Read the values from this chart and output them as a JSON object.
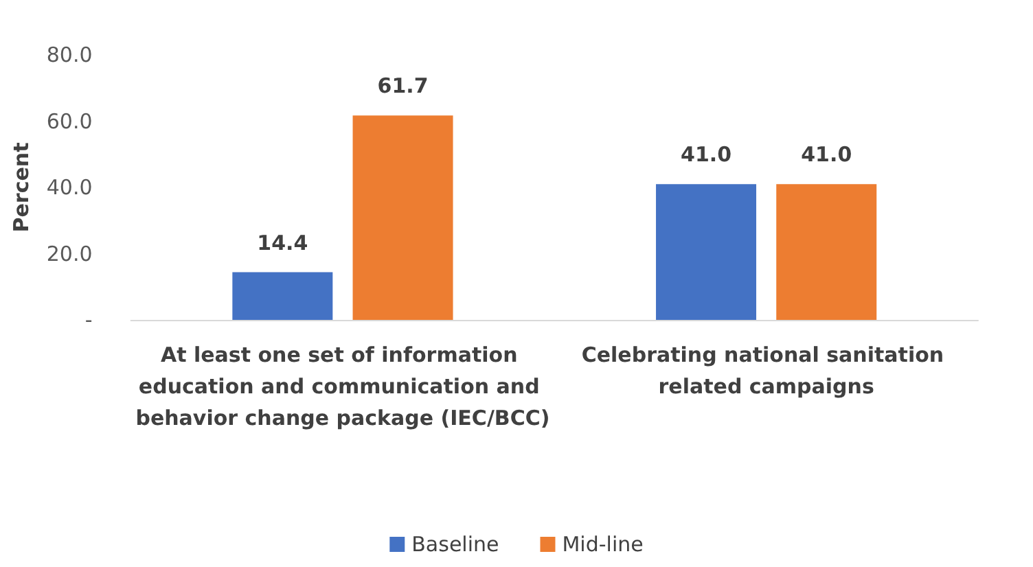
{
  "chart_data": {
    "type": "bar",
    "ylabel": "Percent",
    "categories": [
      "At least one set of information education and communication and behavior change package (IEC/BCC)",
      "Celebrating national sanitation related campaigns"
    ],
    "series": [
      {
        "name": "Baseline",
        "color": "#4472c4",
        "values": [
          14.4,
          41.0
        ],
        "value_labels": [
          "14.4",
          "41.0"
        ]
      },
      {
        "name": "Mid-line",
        "color": "#ed7d31",
        "values": [
          61.7,
          41.0
        ],
        "value_labels": [
          "61.7",
          "41.0"
        ]
      }
    ],
    "ylim": [
      0,
      80
    ],
    "yticks": [
      {
        "value": 0,
        "label": "-"
      },
      {
        "value": 20,
        "label": "20.0"
      },
      {
        "value": 40,
        "label": "40.0"
      },
      {
        "value": 60,
        "label": "60.0"
      },
      {
        "value": 80,
        "label": "80.0"
      }
    ],
    "grid": false,
    "legend": "bottom"
  }
}
